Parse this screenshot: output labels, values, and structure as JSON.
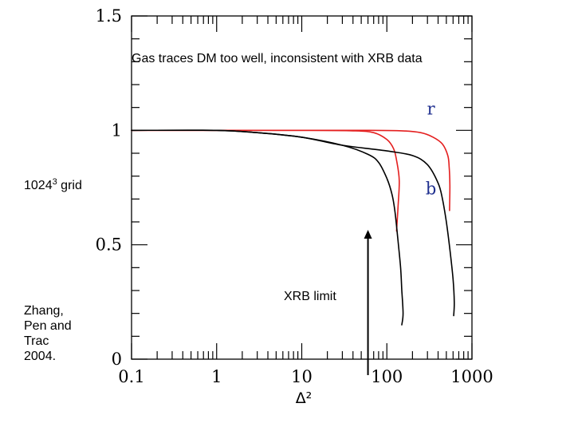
{
  "annotations": {
    "banner": "Gas traces DM too well, inconsistent with XRB data",
    "grid_base": "1024",
    "grid_exp": "3",
    "grid_suffix": " grid",
    "credit": [
      "Zhang,",
      "Pen and",
      "Trac",
      "2004."
    ],
    "xrb_limit": "XRB limit",
    "xrb_limit_x": 60
  },
  "chart_data": {
    "type": "line",
    "title": "",
    "xlabel": "Δ²",
    "ylabel": "",
    "xscale": "log",
    "xlim": [
      0.1,
      1000
    ],
    "ylim": [
      0,
      1.5
    ],
    "x_ticks": [
      "0.1",
      "1",
      "10",
      "100",
      "1000"
    ],
    "y_ticks": [
      "0",
      "0.5",
      "1",
      "1.5"
    ],
    "grid": false,
    "legend": "none",
    "colors": {
      "r": "#e41f1f",
      "b": "#000000",
      "axes": "#000000"
    },
    "curve_labels": [
      {
        "text": "r",
        "x": 330,
        "y": 1.07
      },
      {
        "text": "b",
        "x": 330,
        "y": 0.72
      }
    ],
    "series": [
      {
        "label": "r",
        "color": "#e41f1f",
        "x": [
          0.1,
          1,
          10,
          40,
          70,
          100,
          120,
          130,
          140,
          135,
          130
        ],
        "y": [
          1.0,
          1.0,
          1.0,
          0.998,
          0.99,
          0.96,
          0.92,
          0.87,
          0.78,
          0.66,
          0.56
        ]
      },
      {
        "label": "r",
        "color": "#e41f1f",
        "x": [
          0.1,
          1,
          10,
          50,
          150,
          250,
          350,
          450,
          520,
          540,
          550,
          545
        ],
        "y": [
          1.0,
          1.0,
          1.0,
          1.0,
          0.998,
          0.99,
          0.97,
          0.94,
          0.89,
          0.84,
          0.76,
          0.65
        ]
      },
      {
        "label": "b",
        "color": "#000000",
        "x": [
          0.1,
          1,
          3,
          10,
          30,
          60,
          80,
          100,
          115,
          125,
          135,
          145,
          150,
          155,
          150
        ],
        "y": [
          1.0,
          1.0,
          0.99,
          0.97,
          0.935,
          0.895,
          0.86,
          0.79,
          0.72,
          0.64,
          0.52,
          0.4,
          0.3,
          0.2,
          0.15
        ]
      },
      {
        "label": "b",
        "color": "#000000",
        "x": [
          0.1,
          1,
          3,
          10,
          30,
          100,
          200,
          300,
          400,
          450,
          500,
          550,
          600,
          620,
          610
        ],
        "y": [
          1.0,
          1.0,
          0.99,
          0.97,
          0.935,
          0.91,
          0.89,
          0.85,
          0.77,
          0.7,
          0.6,
          0.48,
          0.35,
          0.25,
          0.19
        ]
      }
    ]
  }
}
